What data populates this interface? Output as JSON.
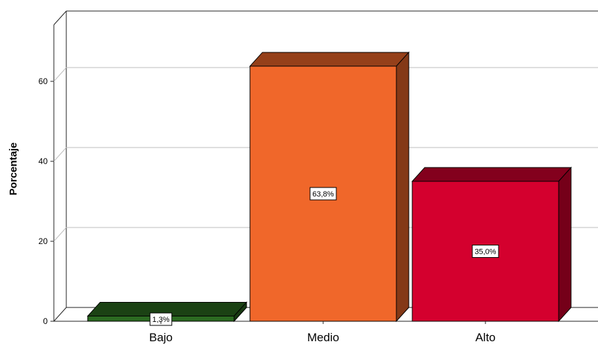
{
  "chart_data": {
    "type": "bar",
    "categories": [
      "Bajo",
      "Medio",
      "Alto"
    ],
    "values": [
      1.3,
      63.8,
      35.0
    ],
    "data_labels": [
      "1,3%",
      "63,8%",
      "35,0%"
    ],
    "colors": [
      "#2b6a21",
      "#f0672a",
      "#d4002e"
    ],
    "ylabel": "Porcentaje",
    "yticks": [
      0,
      20,
      40,
      60
    ],
    "yticks_text": [
      "0",
      "20",
      "40",
      "60"
    ],
    "ylim": [
      0,
      75
    ],
    "grid": true,
    "style": "3d"
  }
}
